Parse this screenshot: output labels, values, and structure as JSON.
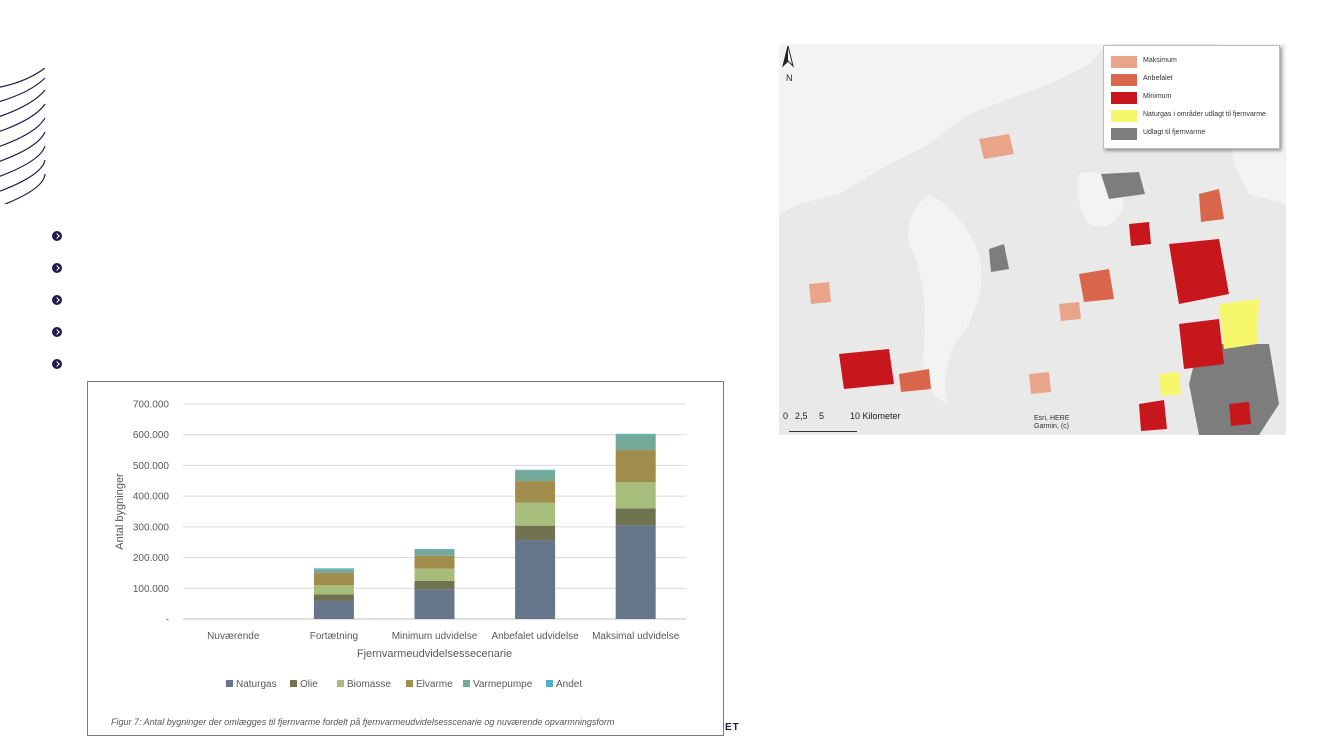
{
  "footer_fragment": "ET",
  "chart_data": {
    "type": "bar",
    "stacked": true,
    "categories": [
      "Nuværende",
      "Fortætning",
      "Minimum udvidelse",
      "Anbefalet udvidelse",
      "Maksimal udvidelse"
    ],
    "series": [
      {
        "name": "Naturgas",
        "color": "#67758a",
        "values": [
          0,
          60000,
          97000,
          257000,
          305000
        ]
      },
      {
        "name": "Olie",
        "color": "#6f7350",
        "values": [
          0,
          20000,
          27000,
          47000,
          55000
        ]
      },
      {
        "name": "Biomasse",
        "color": "#a7bd7b",
        "values": [
          0,
          30000,
          40000,
          75000,
          85000
        ]
      },
      {
        "name": "Elvarme",
        "color": "#a08d4b",
        "values": [
          0,
          40000,
          42000,
          70000,
          105000
        ]
      },
      {
        "name": "Varmepumpe",
        "color": "#74a898",
        "values": [
          0,
          12000,
          20000,
          35000,
          50000
        ]
      },
      {
        "name": "Andet",
        "color": "#4cb3c7",
        "values": [
          0,
          3000,
          2000,
          2000,
          3000
        ]
      }
    ],
    "yticks": [
      "-",
      "100.000",
      "200.000",
      "300.000",
      "400.000",
      "500.000",
      "600.000",
      "700.000"
    ],
    "ylim": [
      0,
      700000
    ],
    "xlabel": "Fjernvarmeudvidelsessecenarie",
    "ylabel": "Antal bygninger",
    "legend_position": "bottom",
    "grid": true,
    "caption": "Figur 7: Antal bygninger der omlægges til fjernvarme fordelt på fjernvarmeudvidelsesscenarie og nuværende opvarmningsform"
  },
  "map": {
    "legend": [
      {
        "label": "Maksimum",
        "color": "#e8a58a"
      },
      {
        "label": "Anbefalet",
        "color": "#d9664a"
      },
      {
        "label": "Minimum",
        "color": "#c8161d"
      },
      {
        "label": "Naturgas i områder udlagt til fjernvarme",
        "color": "#f6f76a"
      },
      {
        "label": "Udlagt til fjernvarme",
        "color": "#7d7d7d"
      }
    ],
    "north_label": "N",
    "scale_labels": [
      "0",
      "2,5",
      "5",
      "10 Kilometer"
    ],
    "attribution_line1": "Esri, HERE",
    "attribution_line2": "Garmin, (c)"
  }
}
